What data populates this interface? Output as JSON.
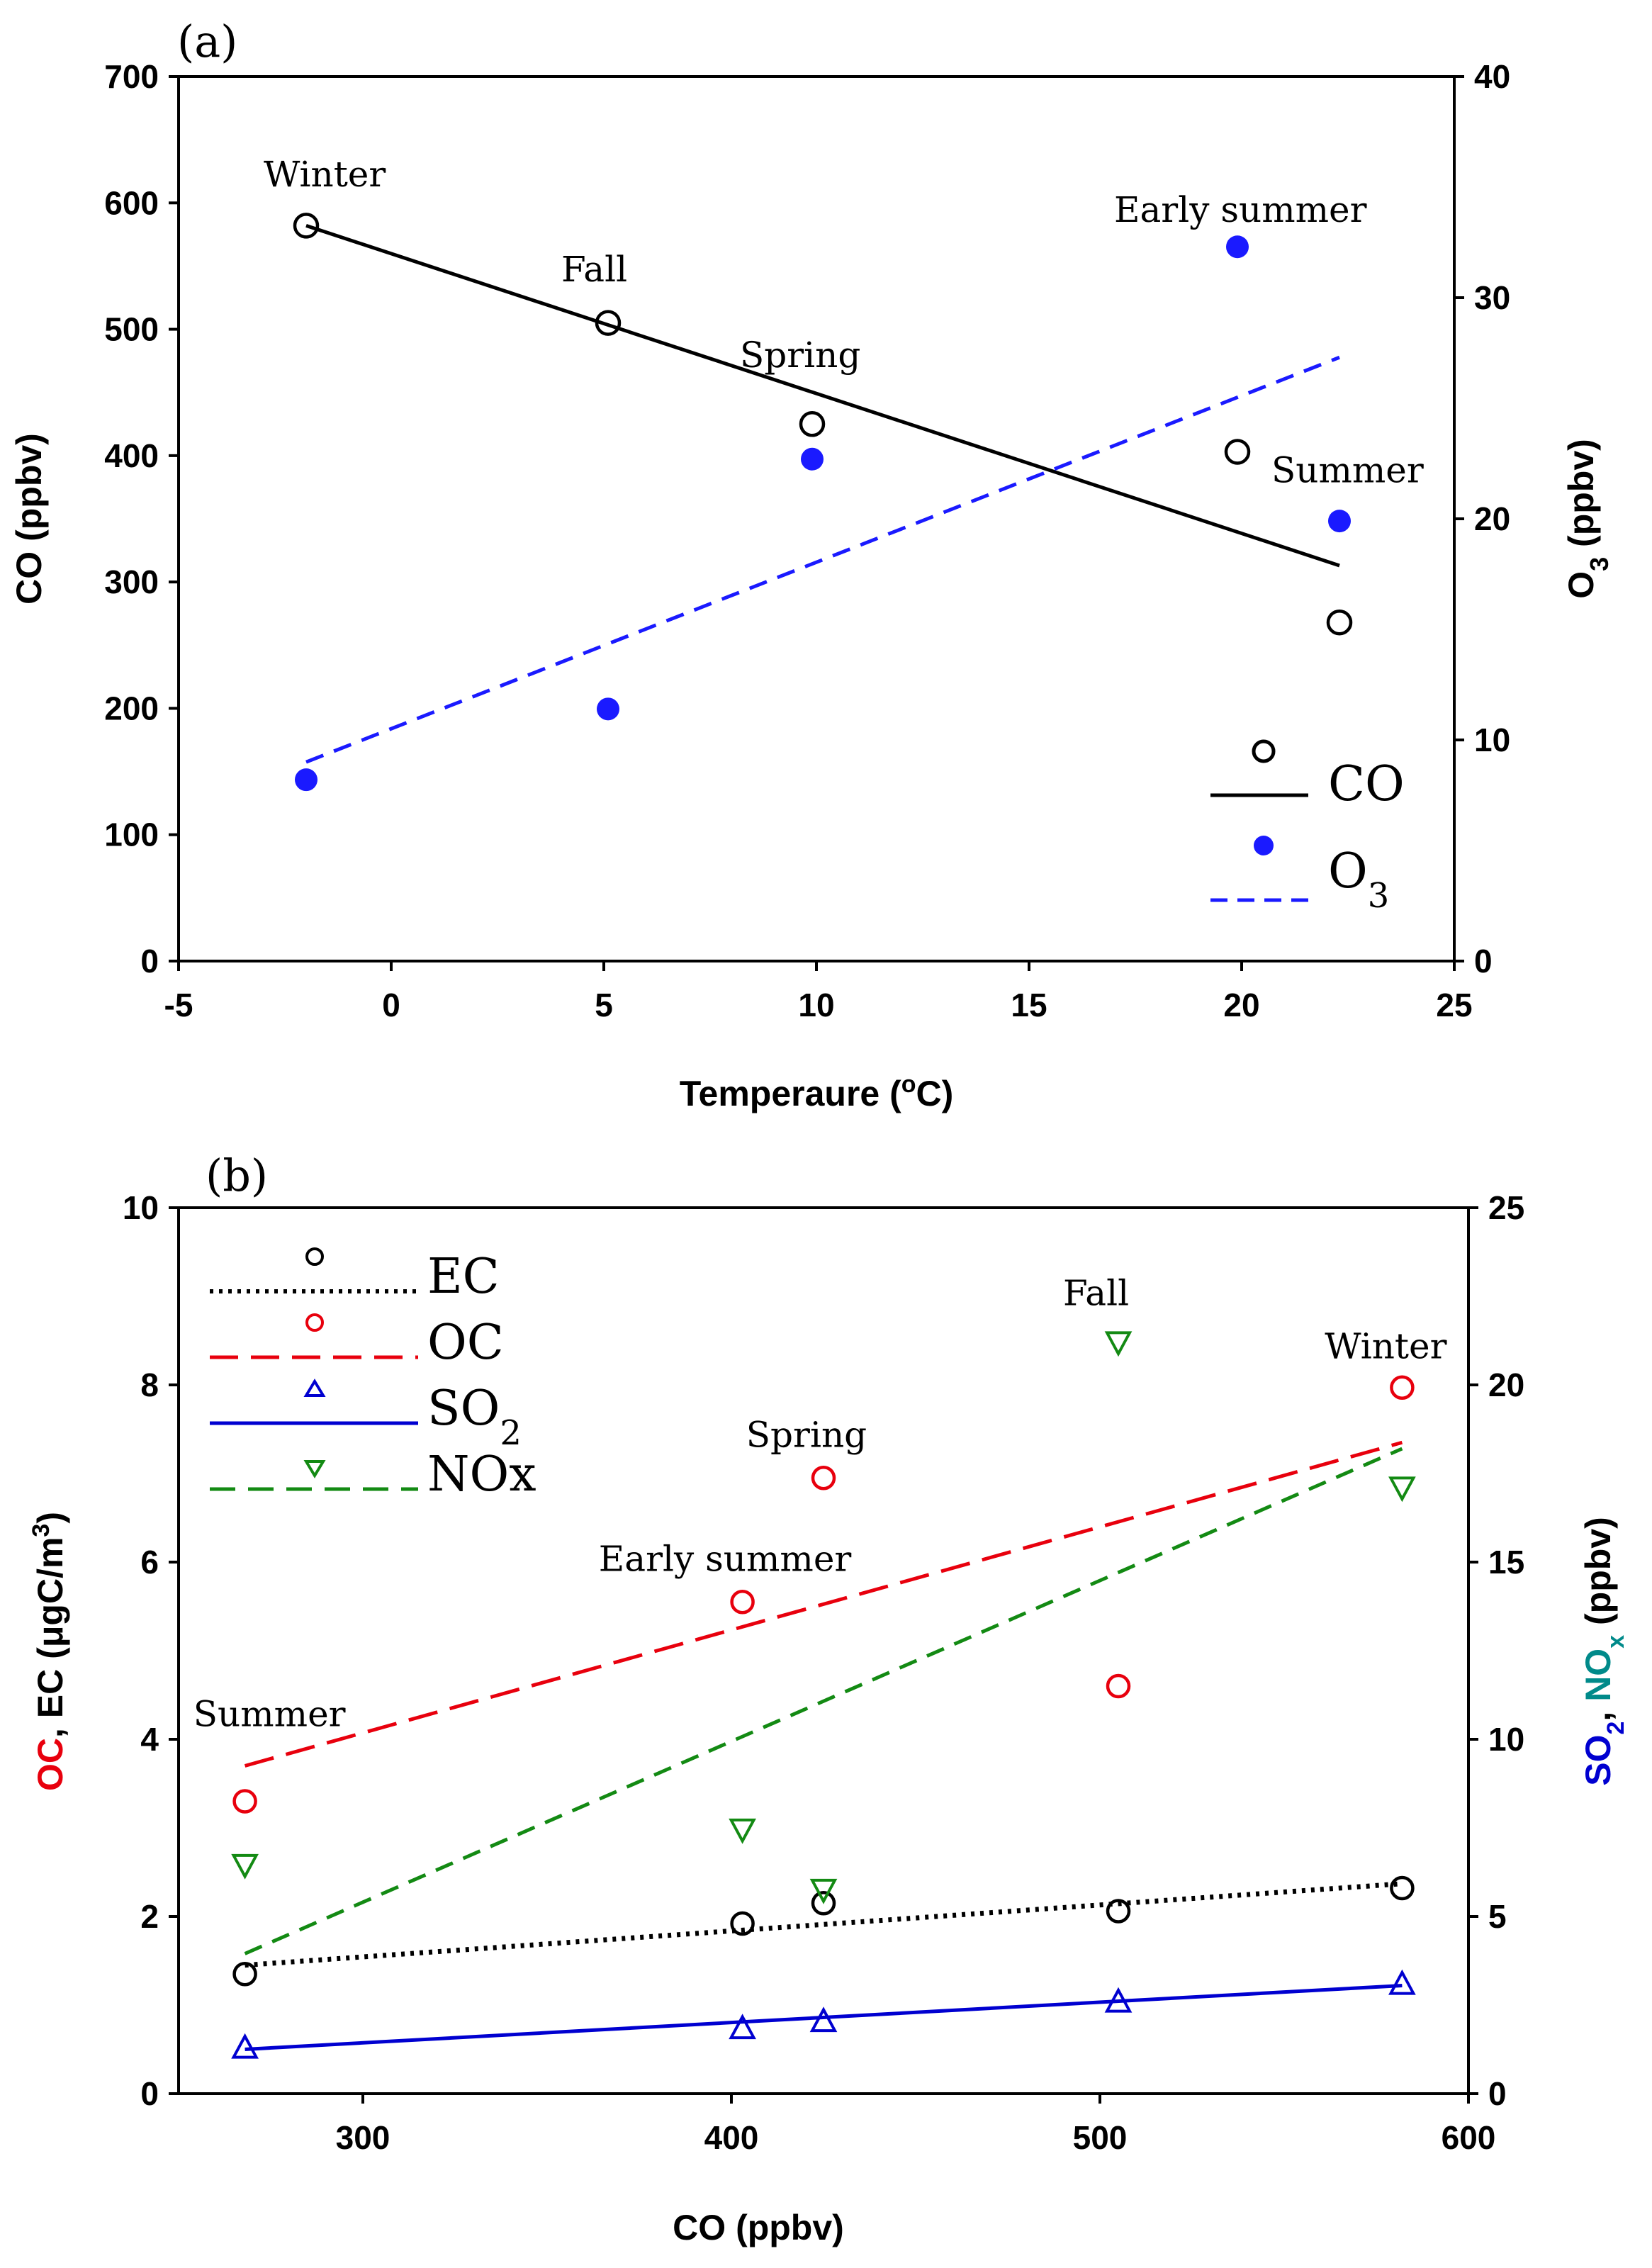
{
  "colors": {
    "co": "#000000",
    "o3": "#1a1aff",
    "ec": "#000000",
    "oc": "#e8000d",
    "so2": "#0000d0",
    "nox": "#138a13",
    "nox_label": "#008a8a"
  },
  "chart_data": [
    {
      "panel": "(a)",
      "type": "scatter",
      "xlabel_main": "Temperaure (",
      "xlabel_deg": "o",
      "xlabel_end": "C)",
      "ylabel_left": "CO (ppbv)",
      "ylabel_right_main": "O",
      "ylabel_right_sub": "3",
      "ylabel_right_end": " (ppbv)",
      "xlim": [
        -5,
        25
      ],
      "ylim_left": [
        0,
        700
      ],
      "ylim_right": [
        0,
        40
      ],
      "x_ticks": [
        "-5",
        "0",
        "5",
        "10",
        "15",
        "20",
        "25"
      ],
      "y_left_ticks": [
        "0",
        "100",
        "200",
        "300",
        "400",
        "500",
        "600",
        "700"
      ],
      "y_right_ticks": [
        "0",
        "10",
        "20",
        "30",
        "40"
      ],
      "series": [
        {
          "name": "CO",
          "axis": "left",
          "marker": "open-circle",
          "x": [
            -2,
            5.1,
            9.9,
            19.9,
            22.3
          ],
          "y": [
            582,
            505,
            425,
            403,
            268
          ],
          "fit": {
            "x": [
              -2,
              22.3
            ],
            "y": [
              582,
              313
            ],
            "style": "solid"
          }
        },
        {
          "name": "O3",
          "axis": "right",
          "marker": "filled-circle",
          "x": [
            -2,
            5.1,
            9.9,
            19.9,
            22.3
          ],
          "y": [
            8.2,
            11.4,
            22.7,
            32.3,
            19.9
          ],
          "fit": {
            "x": [
              -2,
              22.3
            ],
            "y": [
              9.0,
              27.3
            ],
            "style": "dashed"
          }
        }
      ],
      "annotations": [
        {
          "text": "Winter",
          "x": -3.0,
          "y": 613
        },
        {
          "text": "Fall",
          "x": 4.0,
          "y": 538
        },
        {
          "text": "Spring",
          "x": 8.2,
          "y": 470
        },
        {
          "text": "Early summer",
          "x": 17.0,
          "y": 585
        },
        {
          "text": "Summer",
          "x": 20.7,
          "y": 379
        }
      ],
      "legend": {
        "co_label": "CO",
        "o3_label_main": "O",
        "o3_label_sub": "3",
        "position": "bottom-right"
      }
    },
    {
      "panel": "(b)",
      "type": "scatter",
      "xlabel": "CO (ppbv)",
      "ylabel_left_oc": "OC",
      "ylabel_left_sep": ", ",
      "ylabel_left_ec": "EC",
      "ylabel_left_unit_main": " (μgC/m",
      "ylabel_left_unit_sup": "3",
      "ylabel_left_unit_end": ")",
      "ylabel_right_so2_main": "SO",
      "ylabel_right_so2_sub": "2",
      "ylabel_right_sep": ", ",
      "ylabel_right_nox_main": "NO",
      "ylabel_right_nox_sub": "x",
      "ylabel_right_end": " (ppbv)",
      "xlim": [
        250,
        600
      ],
      "ylim_left": [
        0,
        10
      ],
      "ylim_right": [
        0,
        25
      ],
      "x_ticks": [
        "300",
        "400",
        "500",
        "600"
      ],
      "y_left_ticks": [
        "0",
        "2",
        "4",
        "6",
        "8",
        "10"
      ],
      "y_right_ticks": [
        "0",
        "5",
        "10",
        "15",
        "20",
        "25"
      ],
      "series": [
        {
          "name": "EC",
          "axis": "left",
          "marker": "open-circle",
          "x": [
            268,
            403,
            425,
            505,
            582
          ],
          "y": [
            1.35,
            1.92,
            2.15,
            2.06,
            2.32
          ],
          "fit": {
            "x": [
              268,
              582
            ],
            "y": [
              1.45,
              2.37
            ],
            "style": "dotted"
          }
        },
        {
          "name": "OC",
          "axis": "left",
          "marker": "open-circle",
          "x": [
            268,
            403,
            425,
            505,
            582
          ],
          "y": [
            3.3,
            5.55,
            6.95,
            4.6,
            7.97
          ],
          "fit": {
            "x": [
              268,
              582
            ],
            "y": [
              3.7,
              7.35
            ],
            "style": "long-dash"
          }
        },
        {
          "name": "SO2",
          "axis": "right",
          "marker": "open-triangle-up",
          "x": [
            268,
            403,
            425,
            505,
            582
          ],
          "y": [
            1.3,
            1.85,
            2.05,
            2.6,
            3.1
          ],
          "fit": {
            "x": [
              268,
              582
            ],
            "y": [
              1.25,
              3.05
            ],
            "style": "solid"
          }
        },
        {
          "name": "NOx",
          "axis": "right",
          "marker": "open-triangle-down",
          "x": [
            268,
            403,
            425,
            505,
            582
          ],
          "y": [
            6.45,
            7.45,
            5.75,
            21.2,
            17.1
          ],
          "fit": {
            "x": [
              268,
              582
            ],
            "y": [
              3.95,
              18.2
            ],
            "style": "dashed"
          }
        }
      ],
      "annotations": [
        {
          "text": "Summer",
          "x": 254,
          "y": 4.15
        },
        {
          "text": "Early summer",
          "x": 364,
          "y": 5.9
        },
        {
          "text": "Spring",
          "x": 404,
          "y": 7.3
        },
        {
          "text": "Fall",
          "x": 490,
          "y": 8.9
        },
        {
          "text": "Winter",
          "x": 561,
          "y": 8.3
        }
      ],
      "legend": {
        "ec_label": "EC",
        "oc_label": "OC",
        "so2_label_main": "SO",
        "so2_label_sub": "2",
        "nox_label": "NOx",
        "position": "top-left"
      }
    }
  ]
}
